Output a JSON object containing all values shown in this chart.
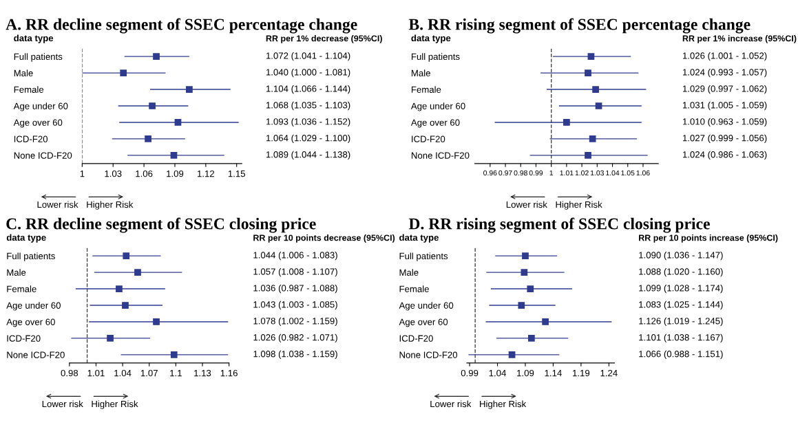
{
  "chart_data": [
    {
      "type": "scatter",
      "orientation": "horizontal",
      "title": "A. RR decline segment of SSEC percentage change",
      "categories": [
        "Full patients",
        "Male",
        "Female",
        "Age under 60",
        "Age over 60",
        "ICD-F20",
        "None ICD-F20"
      ],
      "values": [
        1.072,
        1.04,
        1.104,
        1.068,
        1.093,
        1.064,
        1.089
      ],
      "errors": [
        [
          1.041,
          1.104
        ],
        [
          1.0,
          1.081
        ],
        [
          1.066,
          1.144
        ],
        [
          1.035,
          1.103
        ],
        [
          1.036,
          1.152
        ],
        [
          1.029,
          1.1
        ],
        [
          1.044,
          1.138
        ]
      ],
      "value_labels": [
        "1.072 (1.041 - 1.104)",
        "1.040 (1.000 - 1.081)",
        "1.104 (1.066 - 1.144)",
        "1.068 (1.035 - 1.103)",
        "1.093 (1.036 - 1.152)",
        "1.064 (1.029 - 1.100)",
        "1.089 (1.044 - 1.138)"
      ],
      "color": "#2e3b8f",
      "marker": "square",
      "xlim": [
        1,
        1.155
      ],
      "xticks": [
        1,
        1.03,
        1.06,
        1.09,
        1.12,
        1.15
      ],
      "ref_lines": [
        {
          "axis": "x",
          "value": 1,
          "line_style": "dashed"
        }
      ],
      "grid": false,
      "annotations": [
        "data type",
        "RR per 1% decrease (95%CI)",
        "Lower risk",
        "Higher Risk"
      ]
    },
    {
      "type": "scatter",
      "orientation": "horizontal",
      "title": "B. RR rising segment of SSEC percentage change",
      "categories": [
        "Full patients",
        "Male",
        "Female",
        "Age under 60",
        "Age over 60",
        "ICD-F20",
        "None ICD-F20"
      ],
      "values": [
        1.026,
        1.024,
        1.029,
        1.031,
        1.01,
        1.027,
        1.024
      ],
      "errors": [
        [
          1.001,
          1.052
        ],
        [
          0.993,
          1.057
        ],
        [
          0.997,
          1.062
        ],
        [
          1.005,
          1.059
        ],
        [
          0.963,
          1.059
        ],
        [
          0.999,
          1.056
        ],
        [
          0.986,
          1.063
        ]
      ],
      "value_labels": [
        "1.026 (1.001 - 1.052)",
        "1.024 (0.993 - 1.057)",
        "1.029 (0.997 - 1.062)",
        "1.031 (1.005 - 1.059)",
        "1.010 (0.963 - 1.059)",
        "1.027 (0.999 - 1.056)",
        "1.024 (0.986 - 1.063)"
      ],
      "color": "#2e3b8f",
      "marker": "square",
      "xlim": [
        0.95,
        1.07
      ],
      "xticks": [
        0.96,
        0.97,
        0.98,
        0.99,
        1,
        1.01,
        1.02,
        1.03,
        1.04,
        1.05,
        1.06
      ],
      "ref_lines": [
        {
          "axis": "x",
          "value": 1,
          "line_style": "dashed"
        }
      ],
      "grid": false,
      "annotations": [
        "data type",
        "RR per 1% increase (95%CI)",
        "Lower risk",
        "Higher Risk"
      ]
    },
    {
      "type": "scatter",
      "orientation": "horizontal",
      "title": "C. RR decline segment of SSEC closing price",
      "categories": [
        "Full patients",
        "Male",
        "Female",
        "Age under 60",
        "Age over 60",
        "ICD-F20",
        "None ICD-F20"
      ],
      "values": [
        1.044,
        1.057,
        1.036,
        1.043,
        1.078,
        1.026,
        1.098
      ],
      "errors": [
        [
          1.006,
          1.083
        ],
        [
          1.008,
          1.107
        ],
        [
          0.987,
          1.088
        ],
        [
          1.003,
          1.085
        ],
        [
          1.002,
          1.159
        ],
        [
          0.982,
          1.071
        ],
        [
          1.038,
          1.159
        ]
      ],
      "value_labels": [
        "1.044 (1.006 - 1.083)",
        "1.057 (1.008 - 1.107)",
        "1.036 (0.987 - 1.088)",
        "1.043 (1.003 - 1.085)",
        "1.078 (1.002 - 1.159)",
        "1.026 (0.982 - 1.071)",
        "1.098 (1.038 - 1.159)"
      ],
      "color": "#2e3b8f",
      "marker": "square",
      "xlim": [
        0.98,
        1.16
      ],
      "xticks": [
        0.98,
        1.01,
        1.04,
        1.07,
        1.1,
        1.13,
        1.16
      ],
      "ref_lines": [
        {
          "axis": "x",
          "value": 1,
          "line_style": "dashed"
        }
      ],
      "grid": false,
      "annotations": [
        "data type",
        "RR per 10 points decrease (95%CI)",
        "Lower risk",
        "Higher Risk"
      ]
    },
    {
      "type": "scatter",
      "orientation": "horizontal",
      "title": "D. RR rising segment of SSEC closing price",
      "categories": [
        "Full patients",
        "Male",
        "Female",
        "Age under 60",
        "Age over 60",
        "ICD-F20",
        "None ICD-F20"
      ],
      "values": [
        1.09,
        1.088,
        1.099,
        1.083,
        1.126,
        1.101,
        1.066
      ],
      "errors": [
        [
          1.036,
          1.147
        ],
        [
          1.02,
          1.16
        ],
        [
          1.028,
          1.174
        ],
        [
          1.025,
          1.144
        ],
        [
          1.019,
          1.245
        ],
        [
          1.038,
          1.167
        ],
        [
          0.988,
          1.151
        ]
      ],
      "value_labels": [
        "1.090 (1.036 - 1.147)",
        "1.088 (1.020 - 1.160)",
        "1.099 (1.028 - 1.174)",
        "1.083 (1.025 - 1.144)",
        "1.126 (1.019 - 1.245)",
        "1.101 (1.038 - 1.167)",
        "1.066 (0.988 - 1.151)"
      ],
      "color": "#2e3b8f",
      "marker": "square",
      "xlim": [
        0.985,
        1.25
      ],
      "xticks": [
        0.99,
        1.04,
        1.09,
        1.14,
        1.19,
        1.24
      ],
      "ref_lines": [
        {
          "axis": "x",
          "value": 1,
          "line_style": "dashed"
        }
      ],
      "grid": false,
      "annotations": [
        "data type",
        "RR per 10 points increase (95%CI)",
        "Lower risk",
        "Higher Risk"
      ]
    }
  ]
}
